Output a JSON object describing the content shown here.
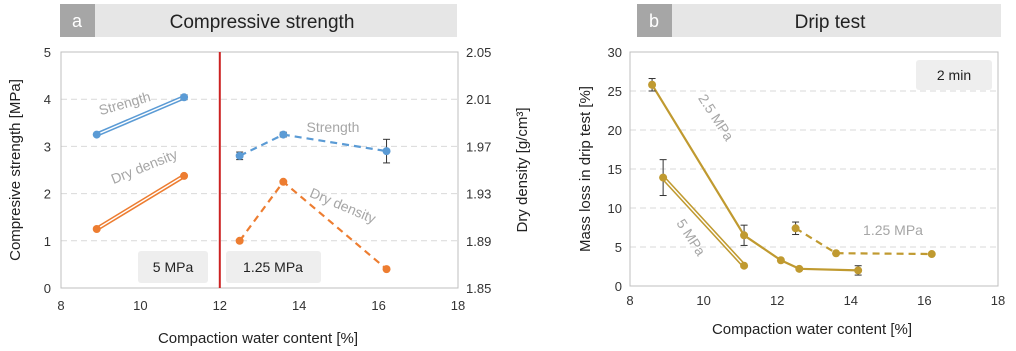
{
  "chart_data": [
    {
      "panel_label": "a",
      "title": "Compressive strength",
      "type": "line",
      "xlabel": "Compaction water content [%]",
      "ylabel": "Compresive strength [MPa]",
      "ylabel_right": "Dry density [g/cm³]",
      "xlim": [
        8,
        18
      ],
      "ylim": [
        0,
        5
      ],
      "ylim_right": [
        1.85,
        2.05
      ],
      "x_ticks": [
        "8",
        "10",
        "12",
        "14",
        "16",
        "18"
      ],
      "y_ticks": [
        "0",
        "1",
        "2",
        "3",
        "4",
        "5"
      ],
      "y_right_ticks": [
        "1.85",
        "1.89",
        "1.93",
        "1.97",
        "2.01",
        "2.05"
      ],
      "grid": "horizontal dashed",
      "divider_x": 12,
      "divider_color": "#cc2222",
      "colors": {
        "strength": "#5b9bd5",
        "density": "#ed7d31"
      },
      "boxes": [
        "5 MPa",
        "1.25 MPa"
      ],
      "series_labels": [
        "Strength",
        "Dry density",
        "Strength",
        "Dry density"
      ],
      "series": [
        {
          "group": "5 MPa",
          "quantity": "strength",
          "style": "double",
          "axis": "left",
          "x": [
            8.9,
            11.1
          ],
          "y": [
            3.25,
            4.04
          ],
          "err": [
            0,
            0.05
          ]
        },
        {
          "group": "5 MPa",
          "quantity": "density",
          "style": "double",
          "axis": "right",
          "x": [
            8.9,
            11.1
          ],
          "y": [
            1.9,
            1.945
          ],
          "err": [
            0,
            0
          ]
        },
        {
          "group": "1.25 MPa",
          "quantity": "strength",
          "style": "dashed",
          "axis": "left",
          "x": [
            12.5,
            13.6,
            16.2
          ],
          "y": [
            2.8,
            3.25,
            2.9
          ],
          "err": [
            0.08,
            0.05,
            0.25
          ]
        },
        {
          "group": "1.25 MPa",
          "quantity": "density",
          "style": "dashed",
          "axis": "right",
          "x": [
            12.5,
            13.6,
            16.2
          ],
          "y": [
            1.89,
            1.94,
            1.866
          ],
          "err": [
            0,
            0,
            0
          ]
        }
      ]
    },
    {
      "panel_label": "b",
      "title": "Drip test",
      "type": "line",
      "xlabel": "Compaction water content [%]",
      "ylabel": "Mass loss in drip test [%]",
      "xlim": [
        8,
        18
      ],
      "ylim": [
        0,
        30
      ],
      "x_ticks": [
        "8",
        "10",
        "12",
        "14",
        "16",
        "18"
      ],
      "y_ticks": [
        "0",
        "5",
        "10",
        "15",
        "20",
        "25",
        "30"
      ],
      "grid": "horizontal dashed",
      "color": "#c09a30",
      "box": "2 min",
      "series_labels": [
        "2.5 MPa",
        "5 MPa",
        "1.25 MPa"
      ],
      "series": [
        {
          "label": "2.5 MPa",
          "style": "solid",
          "x": [
            8.6,
            11.1,
            12.1,
            12.6,
            14.2
          ],
          "y": [
            25.8,
            6.5,
            3.3,
            2.2,
            2.0
          ],
          "err": [
            0.8,
            1.3,
            0,
            0,
            0.6
          ]
        },
        {
          "label": "5 MPa",
          "style": "double",
          "x": [
            8.9,
            11.1
          ],
          "y": [
            13.9,
            2.6
          ],
          "err": [
            2.3,
            0
          ]
        },
        {
          "label": "1.25 MPa",
          "style": "dashed",
          "x": [
            12.5,
            13.6,
            16.2
          ],
          "y": [
            7.4,
            4.2,
            4.1
          ],
          "err": [
            0.8,
            0,
            0
          ]
        }
      ]
    }
  ]
}
